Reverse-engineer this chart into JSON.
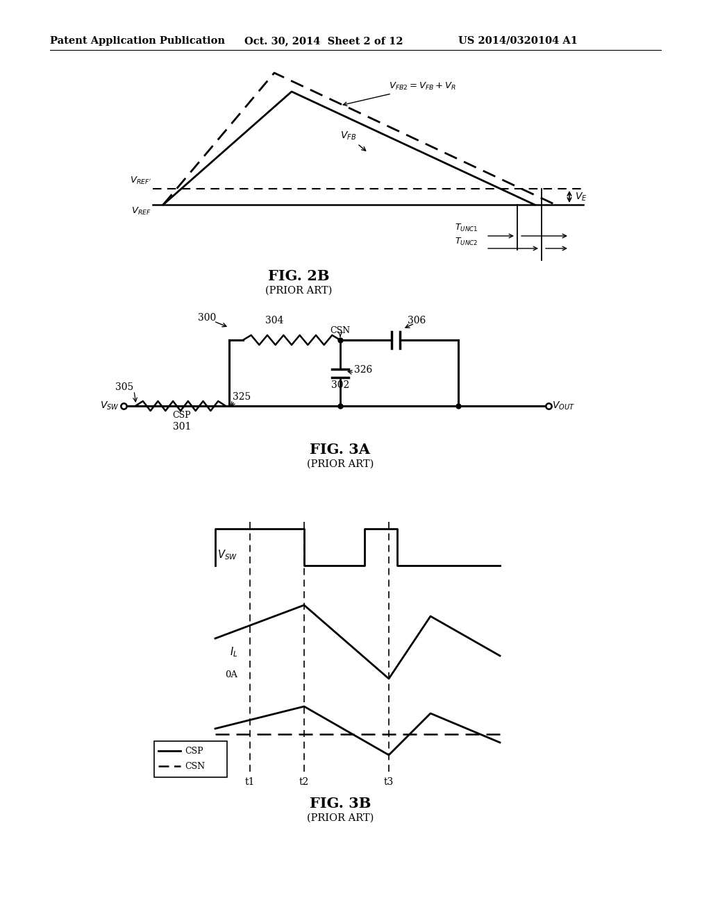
{
  "bg_color": "#ffffff",
  "header_text": "Patent Application Publication",
  "header_date": "Oct. 30, 2014  Sheet 2 of 12",
  "header_patent": "US 2014/0320104 A1",
  "fig2b_title": "FIG. 2B",
  "fig2b_subtitle": "(PRIOR ART)",
  "fig3a_title": "FIG. 3A",
  "fig3a_subtitle": "(PRIOR ART)",
  "fig3b_title": "FIG. 3B",
  "fig3b_subtitle": "(PRIOR ART)"
}
